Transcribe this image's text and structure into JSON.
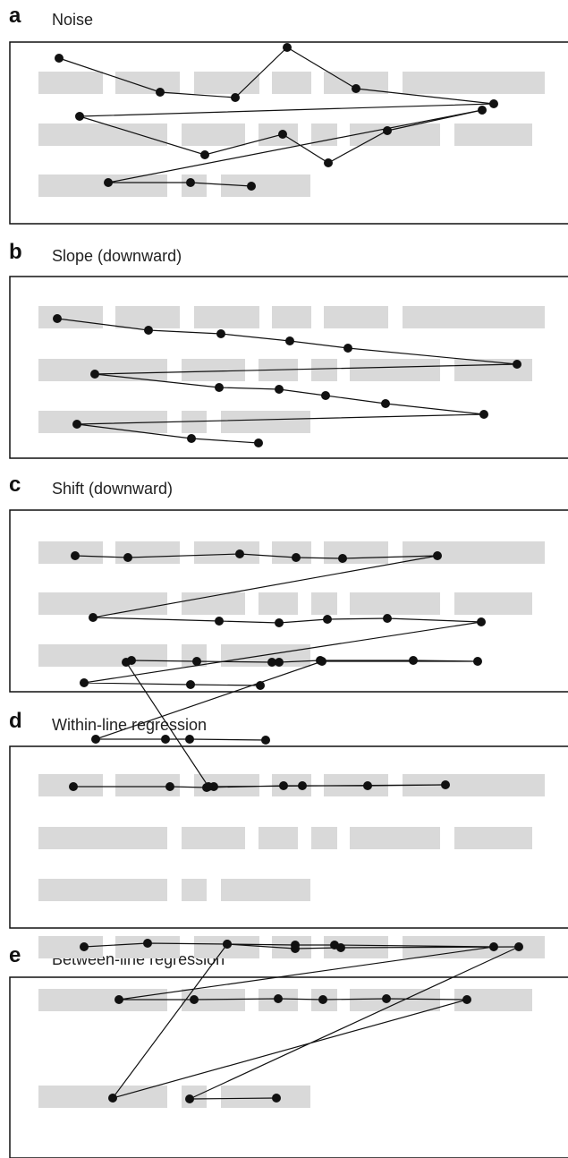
{
  "panels": [
    {
      "letter": "a",
      "title": "Noise",
      "words": [
        [
          [
            43,
            115
          ],
          [
            129,
            201
          ],
          [
            217,
            290
          ],
          [
            304,
            348
          ],
          [
            362,
            434
          ],
          [
            450,
            609
          ]
        ],
        [
          [
            43,
            187
          ],
          [
            203,
            274
          ],
          [
            289,
            333
          ],
          [
            348,
            377
          ],
          [
            391,
            492
          ],
          [
            508,
            595
          ]
        ],
        [
          [
            43,
            187
          ],
          [
            203,
            231
          ],
          [
            247,
            347
          ]
        ]
      ],
      "fixations": [
        [
          66,
          65
        ],
        [
          179,
          103
        ],
        [
          263,
          109
        ],
        [
          321,
          53
        ],
        [
          398,
          99
        ],
        [
          552,
          116
        ],
        [
          89,
          130
        ],
        [
          229,
          173
        ],
        [
          316,
          150
        ],
        [
          367,
          182
        ],
        [
          433,
          146
        ],
        [
          539,
          123
        ],
        [
          121,
          204
        ],
        [
          213,
          204
        ],
        [
          281,
          208
        ]
      ]
    },
    {
      "letter": "b",
      "title": "Slope (downward)",
      "words": [
        [
          [
            43,
            115
          ],
          [
            129,
            201
          ],
          [
            217,
            290
          ],
          [
            304,
            348
          ],
          [
            362,
            434
          ],
          [
            450,
            609
          ]
        ],
        [
          [
            43,
            187
          ],
          [
            203,
            274
          ],
          [
            289,
            333
          ],
          [
            348,
            377
          ],
          [
            391,
            492
          ],
          [
            508,
            595
          ]
        ],
        [
          [
            43,
            187
          ],
          [
            203,
            231
          ],
          [
            247,
            347
          ]
        ]
      ],
      "fixations": [
        [
          64,
          356
        ],
        [
          166,
          369
        ],
        [
          247,
          373
        ],
        [
          324,
          381
        ],
        [
          389,
          389
        ],
        [
          578,
          407
        ],
        [
          106,
          418
        ],
        [
          245,
          433
        ],
        [
          312,
          435
        ],
        [
          364,
          442
        ],
        [
          431,
          451
        ],
        [
          541,
          463
        ],
        [
          86,
          474
        ],
        [
          214,
          490
        ],
        [
          289,
          495
        ]
      ]
    },
    {
      "letter": "c",
      "title": "Shift (downward)",
      "words": [
        [
          [
            43,
            115
          ],
          [
            129,
            201
          ],
          [
            217,
            290
          ],
          [
            304,
            348
          ],
          [
            362,
            434
          ],
          [
            450,
            609
          ]
        ],
        [
          [
            43,
            187
          ],
          [
            203,
            274
          ],
          [
            289,
            333
          ],
          [
            348,
            377
          ],
          [
            391,
            492
          ],
          [
            508,
            595
          ]
        ],
        [
          [
            43,
            187
          ],
          [
            203,
            231
          ],
          [
            247,
            347
          ]
        ]
      ],
      "fixations": [
        [
          84,
          621
        ],
        [
          143,
          623
        ],
        [
          268,
          619
        ],
        [
          331,
          623
        ],
        [
          383,
          624
        ],
        [
          489,
          621
        ],
        [
          104,
          690
        ],
        [
          245,
          694
        ],
        [
          312,
          696
        ],
        [
          366,
          692
        ],
        [
          433,
          691
        ],
        [
          538,
          695
        ],
        [
          94,
          763
        ],
        [
          213,
          765
        ],
        [
          291,
          766
        ]
      ]
    },
    {
      "letter": "d",
      "title": "Within-line regression",
      "words": [
        [
          [
            43,
            115
          ],
          [
            129,
            201
          ],
          [
            217,
            290
          ],
          [
            304,
            348
          ],
          [
            362,
            434
          ],
          [
            450,
            609
          ]
        ],
        [
          [
            43,
            187
          ],
          [
            203,
            274
          ],
          [
            289,
            333
          ],
          [
            348,
            377
          ],
          [
            391,
            492
          ],
          [
            508,
            595
          ]
        ],
        [
          [
            43,
            187
          ],
          [
            203,
            231
          ],
          [
            247,
            347
          ]
        ]
      ],
      "fixations": [
        [
          82,
          879
        ],
        [
          190,
          879
        ],
        [
          231,
          880
        ],
        [
          317,
          878
        ],
        [
          338,
          878
        ],
        [
          411,
          878
        ],
        [
          498,
          877
        ],
        [
          239,
          879
        ],
        [
          233,
          879
        ],
        [
          141,
          740
        ],
        [
          147,
          738
        ],
        [
          220,
          739
        ],
        [
          304,
          740
        ],
        [
          312,
          740
        ],
        [
          358,
          738
        ],
        [
          462,
          738
        ],
        [
          534,
          739
        ],
        [
          360,
          739
        ],
        [
          107,
          826
        ],
        [
          185,
          826
        ],
        [
          212,
          826
        ],
        [
          297,
          827
        ]
      ]
    },
    {
      "letter": "e",
      "title": "Between-line regression",
      "words": [
        [
          [
            43,
            115
          ],
          [
            129,
            201
          ],
          [
            217,
            290
          ],
          [
            304,
            348
          ],
          [
            362,
            434
          ],
          [
            450,
            609
          ]
        ],
        [
          [
            43,
            187
          ],
          [
            203,
            274
          ],
          [
            289,
            333
          ],
          [
            348,
            377
          ],
          [
            391,
            492
          ],
          [
            508,
            595
          ]
        ],
        [
          [
            43,
            187
          ],
          [
            203,
            231
          ],
          [
            247,
            347
          ]
        ]
      ],
      "fixations": [
        [
          94,
          1058
        ],
        [
          165,
          1054
        ],
        [
          254,
          1055
        ],
        [
          330,
          1056
        ],
        [
          374,
          1056
        ],
        [
          552,
          1058
        ],
        [
          133,
          1117
        ],
        [
          217,
          1117
        ],
        [
          311,
          1116
        ],
        [
          361,
          1117
        ],
        [
          432,
          1116
        ],
        [
          522,
          1117
        ],
        [
          126,
          1227
        ],
        [
          254,
          1055
        ],
        [
          330,
          1060
        ],
        [
          381,
          1059
        ],
        [
          580,
          1058
        ],
        [
          212,
          1228
        ],
        [
          309,
          1227
        ]
      ]
    }
  ],
  "colors": {
    "word": "#d9d9d9",
    "fixation": "#111111",
    "frame": "#111111"
  }
}
